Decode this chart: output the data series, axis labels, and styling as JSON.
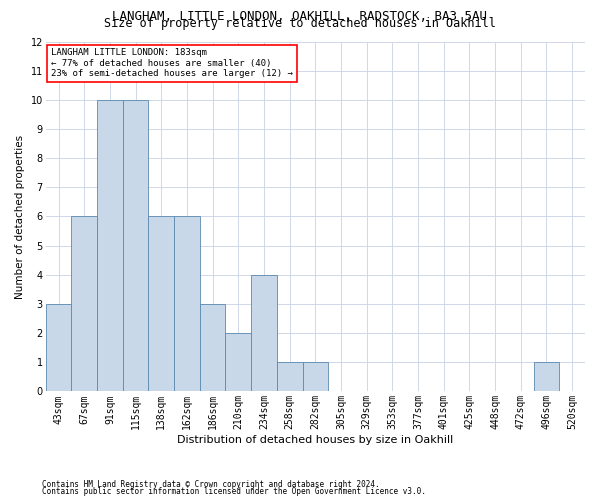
{
  "title": "LANGHAM, LITTLE LONDON, OAKHILL, RADSTOCK, BA3 5AU",
  "subtitle": "Size of property relative to detached houses in Oakhill",
  "xlabel": "Distribution of detached houses by size in Oakhill",
  "ylabel": "Number of detached properties",
  "footnote1": "Contains HM Land Registry data © Crown copyright and database right 2024.",
  "footnote2": "Contains public sector information licensed under the Open Government Licence v3.0.",
  "categories": [
    "43sqm",
    "67sqm",
    "91sqm",
    "115sqm",
    "138sqm",
    "162sqm",
    "186sqm",
    "210sqm",
    "234sqm",
    "258sqm",
    "282sqm",
    "305sqm",
    "329sqm",
    "353sqm",
    "377sqm",
    "401sqm",
    "425sqm",
    "448sqm",
    "472sqm",
    "496sqm",
    "520sqm"
  ],
  "values": [
    3,
    6,
    10,
    10,
    6,
    6,
    3,
    2,
    4,
    1,
    1,
    0,
    0,
    0,
    0,
    0,
    0,
    0,
    0,
    1,
    0
  ],
  "bar_color": "#c8d8e8",
  "bar_edge_color": "#5a8ab0",
  "ylim": [
    0,
    12
  ],
  "yticks": [
    0,
    1,
    2,
    3,
    4,
    5,
    6,
    7,
    8,
    9,
    10,
    11,
    12
  ],
  "annotation_text": "LANGHAM LITTLE LONDON: 183sqm\n← 77% of detached houses are smaller (40)\n23% of semi-detached houses are larger (12) →",
  "annotation_box_color": "white",
  "annotation_box_edge_color": "red",
  "bg_color": "white",
  "grid_color": "#d0d8e8",
  "title_fontsize": 9,
  "subtitle_fontsize": 8.5,
  "ylabel_fontsize": 7.5,
  "xlabel_fontsize": 8,
  "tick_fontsize": 7,
  "annotation_fontsize": 6.5,
  "footnote_fontsize": 5.5
}
